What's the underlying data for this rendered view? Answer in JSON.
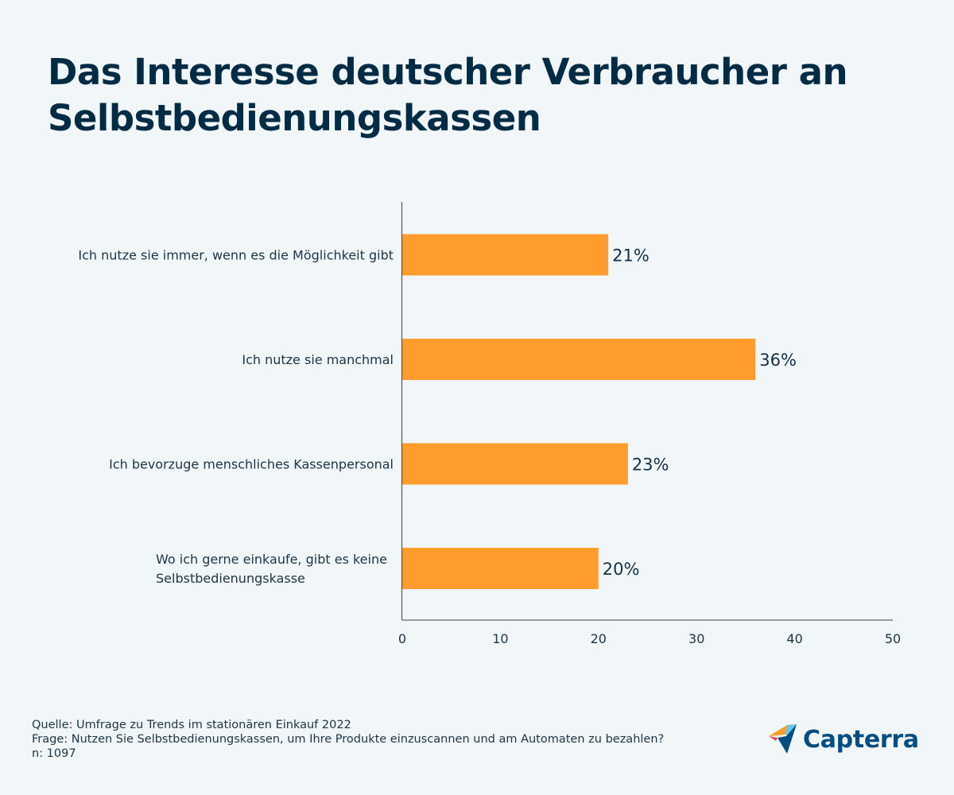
{
  "title": "Das Interesse deutscher Verbraucher an Selbstbedienungskassen",
  "chart_data": {
    "type": "bar",
    "orientation": "horizontal",
    "title": "Das Interesse deutscher Verbraucher an Selbstbedienungskassen",
    "categories": [
      "Ich nutze sie immer, wenn es die Möglichkeit gibt",
      "Ich nutze sie manchmal",
      "Ich bevorzuge menschliches Kassenpersonal",
      "Wo ich gerne einkaufe, gibt es keine Selbstbedienungskasse"
    ],
    "category_lines": [
      [
        "Ich nutze sie immer, wenn es die Möglichkeit gibt"
      ],
      [
        "Ich nutze sie manchmal"
      ],
      [
        "Ich bevorzuge menschliches Kassenpersonal"
      ],
      [
        "Wo ich gerne einkaufe, gibt es keine",
        "Selbstbedienungskasse"
      ]
    ],
    "values": [
      21,
      36,
      23,
      20
    ],
    "value_labels": [
      "21%",
      "36%",
      "23%",
      "20%"
    ],
    "xlabel": "",
    "ylabel": "",
    "xlim": [
      0,
      50
    ],
    "xticks": [
      0,
      10,
      20,
      30,
      40,
      50
    ],
    "grid": false,
    "legend": "none",
    "bar_color": "#ff9c2e"
  },
  "footer": {
    "source": "Quelle: Umfrage zu Trends im stationären Einkauf 2022",
    "question": "Frage: Nutzen Sie Selbstbedienungskassen, um Ihre Produkte einzuscannen und am Automaten zu bezahlen?",
    "n": "n: 1097"
  },
  "logo": {
    "text": "Capterra",
    "icon": "capterra-arrow-icon",
    "colors": {
      "orange": "#ff9d28",
      "light_blue": "#68c5ed",
      "dark_blue": "#044d80",
      "red": "#e54747"
    }
  }
}
